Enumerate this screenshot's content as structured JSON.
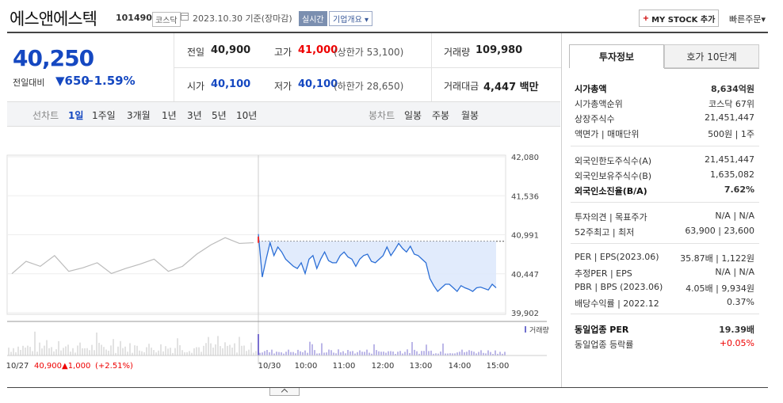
{
  "header": {
    "name": "에스앤에스텍",
    "code": "101490",
    "market": "코스닥",
    "date": "2023.10.30 기준(장마감)",
    "realtime": "실시간",
    "company_info": "기업개요",
    "mystock": "MY STOCK 추가",
    "quick_order": "빠른주문"
  },
  "quote": {
    "price": "40,250",
    "diff_label": "전일대비",
    "diff": "650",
    "diff_pct": "−1.59%",
    "prev_label": "전일",
    "prev": "40,900",
    "high_label": "고가",
    "high": "41,000",
    "upper_label": "(상한가 53,100)",
    "volume_label": "거래량",
    "volume": "109,980",
    "open_label": "시가",
    "open": "40,100",
    "low_label": "저가",
    "low": "40,100",
    "lower_label": "(하한가 28,650)",
    "amount_label": "거래대금",
    "amount": "4,447 백만"
  },
  "periods": {
    "line_label": "선차트",
    "items": [
      "1일",
      "1주일",
      "3개월",
      "1년",
      "3년",
      "5년",
      "10년"
    ],
    "candle_label": "봉차트",
    "candle_items": [
      "일봉",
      "주봉",
      "월봉"
    ]
  },
  "chart_data": {
    "type": "line",
    "y_ticks": [
      "42,080",
      "41,536",
      "40,991",
      "40,447",
      "39,902"
    ],
    "ylim": [
      39902,
      42080
    ],
    "x_labels": [
      "10/27",
      "10/30",
      "10:00",
      "11:00",
      "12:00",
      "13:00",
      "14:00",
      "15:00"
    ],
    "prev_day_summary": {
      "date": "10/27",
      "close": "40,900",
      "change": "▲1,000",
      "pct": "(+2.51%)"
    },
    "volume_legend": "거래량",
    "prev_close": 40900,
    "series": [
      {
        "values": [
          40447,
          40620,
          40550,
          40700,
          40480,
          40530,
          40600,
          40450,
          40520,
          40580,
          40650,
          40480,
          40550,
          40720,
          40850,
          40950,
          40870,
          40880
        ]
      },
      {
        "values": [
          41000,
          40400,
          40650,
          40880,
          40700,
          40820,
          40750,
          40650,
          40600,
          40550,
          40520,
          40600,
          40450,
          40650,
          40700,
          40520,
          40650,
          40750,
          40630,
          40600,
          40600,
          40700,
          40750,
          40680,
          40650,
          40550,
          40650,
          40700,
          40720,
          40620,
          40600,
          40650,
          40700,
          40820,
          40700,
          40780,
          40870,
          40800,
          40750,
          40830,
          40720,
          40700,
          40650,
          40600,
          40380,
          40280,
          40200,
          40250,
          40300,
          40300,
          40250,
          40200,
          40280,
          40250,
          40230,
          40200,
          40250,
          40260,
          40240,
          40220,
          40300,
          40250
        ]
      }
    ]
  },
  "tabs": {
    "active": "투자정보",
    "inactive": "호가 10단계"
  },
  "invest": {
    "cap_label": "시가총액",
    "cap": "8,634억원",
    "cap_rank_label": "시가총액순위",
    "cap_rank": "코스닥 67위",
    "shares_label": "상장주식수",
    "shares": "21,451,447",
    "face_label": "액면가 | 매매단위",
    "face": "500원 | 1주",
    "foreign_limit_label": "외국인한도주식수(A)",
    "foreign_limit": "21,451,447",
    "foreign_hold_label": "외국인보유주식수(B)",
    "foreign_hold": "1,635,082",
    "foreign_ratio_label": "외국인소진율(B/A)",
    "foreign_ratio": "7.62%",
    "opinion_label": "투자의견 | 목표주가",
    "opinion": "N/A | N/A",
    "w52_label": "52주최고 | 최저",
    "w52": "63,900 | 23,600",
    "per_label": "PER | EPS(2023.06)",
    "per": "35.87배 | 1,122원",
    "est_per_label": "추정PER | EPS",
    "est_per": "N/A | N/A",
    "pbr_label": "PBR | BPS (2023.06)",
    "pbr": "4.05배 | 9,934원",
    "div_label": "배당수익률 | 2022.12",
    "div": "0.37%",
    "ind_per_label": "동일업종 PER",
    "ind_per": "19.39배",
    "ind_rate_label": "동일업종 등락률",
    "ind_rate": "+0.05%"
  }
}
